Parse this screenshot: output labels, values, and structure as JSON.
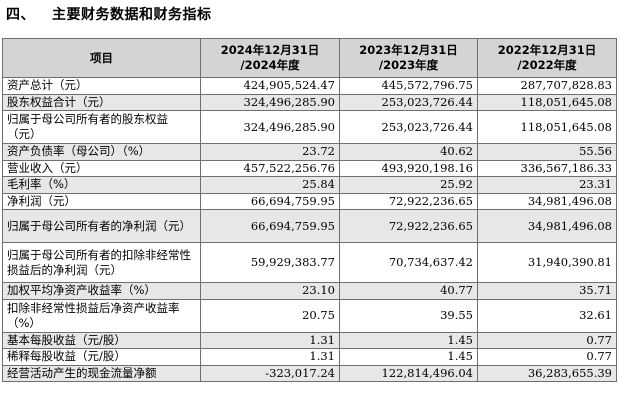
{
  "section": {
    "number": "四、",
    "title": "主要财务数据和财务指标"
  },
  "table": {
    "headers": [
      "项目",
      "2024年12月31日/2024年度",
      "2023年12月31日/2023年度",
      "2022年12月31日/2022年度"
    ],
    "header_lines": [
      [
        "项目"
      ],
      [
        "2024年12月31日",
        "/2024年度"
      ],
      [
        "2023年12月31日",
        "/2023年度"
      ],
      [
        "2022年12月31日",
        "/2022年度"
      ]
    ],
    "rows": [
      [
        "资产总计（元）",
        "424,905,524.47",
        "445,572,796.75",
        "287,707,828.83"
      ],
      [
        "股东权益合计（元）",
        "324,496,285.90",
        "253,023,726.44",
        "118,051,645.08"
      ],
      [
        "归属于母公司所有者的股东权益（元）",
        "324,496,285.90",
        "253,023,726.44",
        "118,051,645.08"
      ],
      [
        "资产负债率（母公司）（%）",
        "23.72",
        "40.62",
        "55.56"
      ],
      [
        "营业收入（元）",
        "457,522,256.76",
        "493,920,198.16",
        "336,567,186.33"
      ],
      [
        "毛利率（%）",
        "25.84",
        "25.92",
        "23.31"
      ],
      [
        "净利润（元）",
        "66,694,759.95",
        "72,922,236.65",
        "34,981,496.08"
      ],
      [
        "归属于母公司所有者的净利润（元）",
        "66,694,759.95",
        "72,922,236.65",
        "34,981,496.08"
      ],
      [
        "归属于母公司所有者的扣除非经常性损益后的净利润（元）",
        "59,929,383.77",
        "70,734,637.42",
        "31,940,390.81"
      ],
      [
        "加权平均净资产收益率（%）",
        "23.10",
        "40.77",
        "35.71"
      ],
      [
        "扣除非经常性损益后净资产收益率（%）",
        "20.75",
        "39.55",
        "32.61"
      ],
      [
        "基本每股收益（元/股）",
        "1.31",
        "1.45",
        "0.77"
      ],
      [
        "稀释每股收益（元/股）",
        "1.31",
        "1.45",
        "0.77"
      ],
      [
        "经营活动产生的现金流量净额",
        "-323,017.24",
        "122,814,496.04",
        "36,283,655.39"
      ]
    ]
  }
}
